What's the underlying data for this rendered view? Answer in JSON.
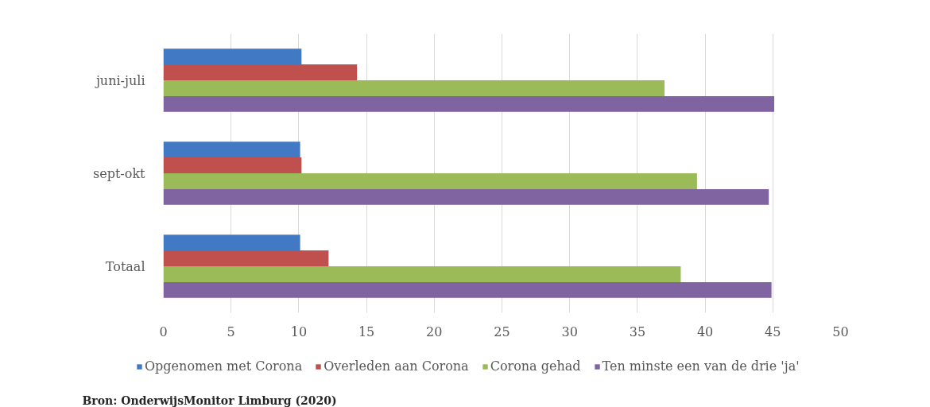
{
  "chart_data": {
    "type": "bar",
    "orientation": "horizontal",
    "categories": [
      "juni-juli",
      "sept-okt",
      "Totaal"
    ],
    "series": [
      {
        "name": "Opgenomen met Corona",
        "color": "#4279c4",
        "values": [
          10.2,
          10.1,
          10.1
        ]
      },
      {
        "name": "Overleden aan Corona",
        "color": "#c0504d",
        "values": [
          14.3,
          10.2,
          12.2
        ]
      },
      {
        "name": "Corona gehad",
        "color": "#9bbb59",
        "values": [
          37.0,
          39.4,
          38.2
        ]
      },
      {
        "name": "Ten minste een van de drie 'ja'",
        "color": "#8064a2",
        "values": [
          45.1,
          44.7,
          44.9
        ]
      }
    ],
    "xlim": [
      0,
      50
    ],
    "xticks": [
      0,
      5,
      10,
      15,
      20,
      25,
      30,
      35,
      40,
      45,
      50
    ],
    "grid": "x",
    "legend": "bottom",
    "annotations": [
      "Bron: OnderwijsMonitor Limburg (2020)"
    ]
  }
}
